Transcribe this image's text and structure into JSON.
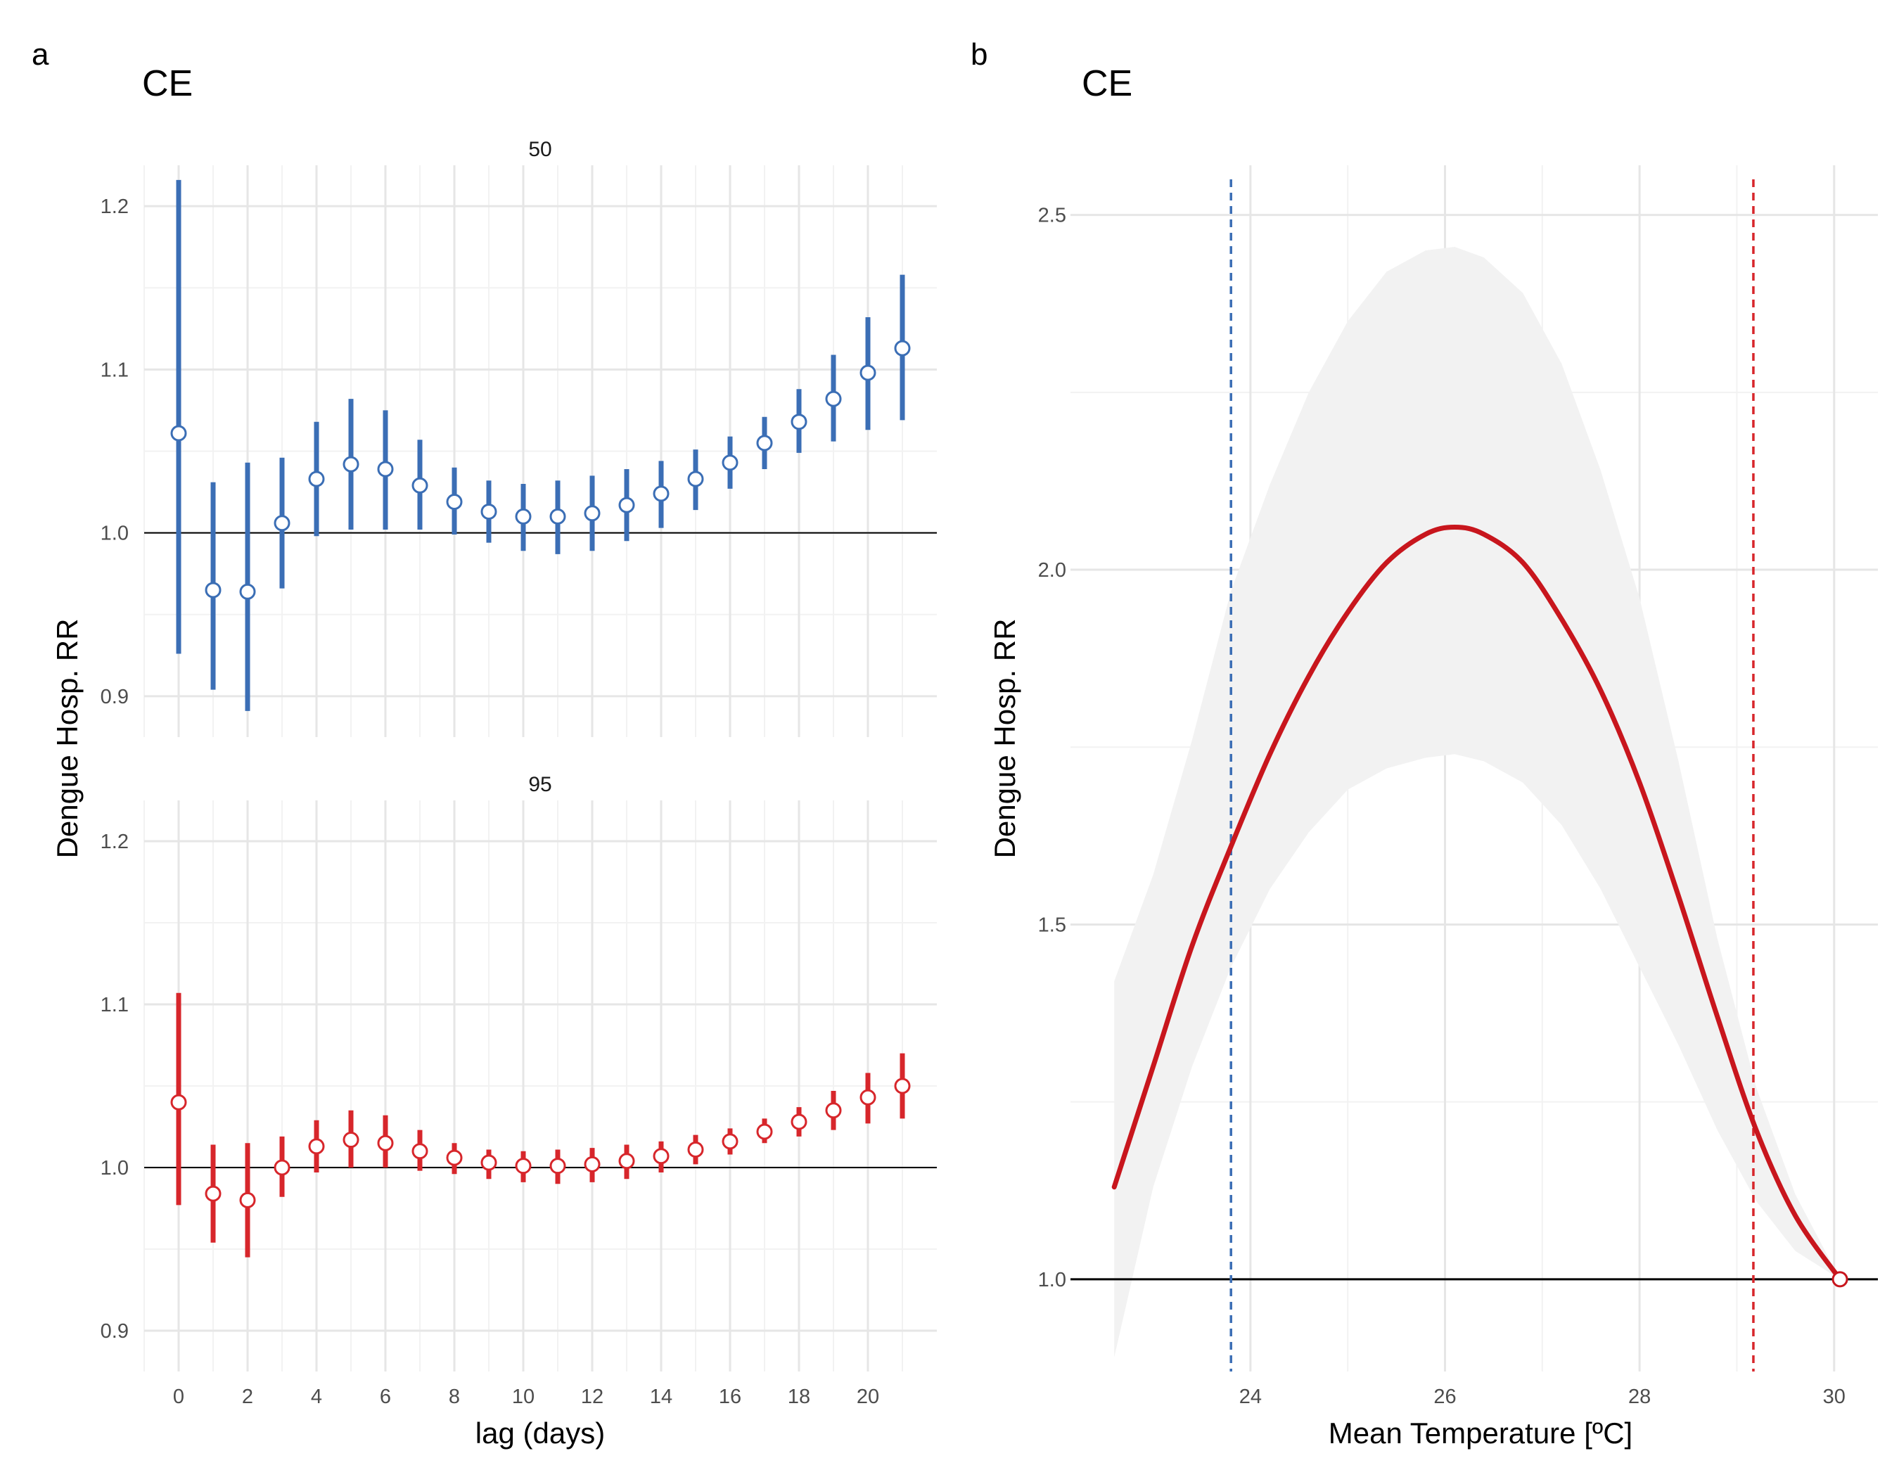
{
  "figure": {
    "panel_a_letter": "a",
    "panel_b_letter": "b"
  },
  "chart_data": [
    {
      "type": "scatter",
      "panel": "a",
      "title": "CE",
      "xlabel": "lag (days)",
      "ylabel": "Dengue Hosp. RR",
      "x_ticks": [
        0,
        2,
        4,
        6,
        8,
        10,
        12,
        14,
        16,
        18,
        20
      ],
      "y_ticks": [
        0.9,
        1.0,
        1.1,
        1.2
      ],
      "ylim": [
        0.875,
        1.225
      ],
      "xlim": [
        -1,
        22
      ],
      "reference_line": 1.0,
      "grid": true,
      "series": [
        {
          "name": "50",
          "color": "#3B6EB5",
          "lag": [
            0,
            1,
            2,
            3,
            4,
            5,
            6,
            7,
            8,
            9,
            10,
            11,
            12,
            13,
            14,
            15,
            16,
            17,
            18,
            19,
            20,
            21
          ],
          "rr": [
            1.061,
            0.965,
            0.964,
            1.006,
            1.033,
            1.042,
            1.039,
            1.029,
            1.019,
            1.013,
            1.01,
            1.01,
            1.012,
            1.017,
            1.024,
            1.033,
            1.043,
            1.055,
            1.068,
            1.082,
            1.098,
            1.113
          ],
          "lower": [
            0.926,
            0.904,
            0.891,
            0.966,
            0.998,
            1.002,
            1.002,
            1.002,
            0.999,
            0.994,
            0.989,
            0.987,
            0.989,
            0.995,
            1.003,
            1.014,
            1.027,
            1.039,
            1.049,
            1.056,
            1.063,
            1.069
          ],
          "upper": [
            1.216,
            1.031,
            1.043,
            1.046,
            1.068,
            1.082,
            1.075,
            1.057,
            1.04,
            1.032,
            1.03,
            1.032,
            1.035,
            1.039,
            1.044,
            1.051,
            1.059,
            1.071,
            1.088,
            1.109,
            1.132,
            1.158
          ]
        },
        {
          "name": "95",
          "color": "#D7262B",
          "lag": [
            0,
            1,
            2,
            3,
            4,
            5,
            6,
            7,
            8,
            9,
            10,
            11,
            12,
            13,
            14,
            15,
            16,
            17,
            18,
            19,
            20,
            21
          ],
          "rr": [
            1.04,
            0.984,
            0.98,
            1.0,
            1.013,
            1.017,
            1.015,
            1.01,
            1.006,
            1.003,
            1.001,
            1.001,
            1.002,
            1.004,
            1.007,
            1.011,
            1.016,
            1.022,
            1.028,
            1.035,
            1.043,
            1.05
          ],
          "lower": [
            0.977,
            0.954,
            0.945,
            0.982,
            0.997,
            1.0,
            1.0,
            0.998,
            0.996,
            0.993,
            0.991,
            0.99,
            0.991,
            0.993,
            0.997,
            1.002,
            1.008,
            1.015,
            1.019,
            1.023,
            1.027,
            1.03
          ],
          "upper": [
            1.107,
            1.014,
            1.015,
            1.019,
            1.029,
            1.035,
            1.032,
            1.023,
            1.015,
            1.011,
            1.01,
            1.011,
            1.012,
            1.014,
            1.016,
            1.02,
            1.024,
            1.03,
            1.037,
            1.047,
            1.058,
            1.07
          ]
        }
      ]
    },
    {
      "type": "line",
      "panel": "b",
      "title": "CE",
      "xlabel": "Mean Temperature [ºC]",
      "ylabel": "Dengue Hosp. RR",
      "x_ticks": [
        24,
        26,
        28,
        30
      ],
      "y_ticks": [
        1.0,
        1.5,
        2.0,
        2.5
      ],
      "xlim": [
        22.15,
        30.45
      ],
      "ylim": [
        0.87,
        2.57
      ],
      "reference_line": 1.0,
      "vlines": [
        {
          "x": 23.8,
          "color": "#3B6EB5"
        },
        {
          "x": 29.17,
          "color": "#D7262B"
        }
      ],
      "grid": true,
      "line_color": "#C8161D",
      "band_color": "#F2F2F2",
      "x": [
        22.6,
        23.0,
        23.4,
        23.8,
        24.2,
        24.6,
        25.0,
        25.4,
        25.8,
        26.1,
        26.4,
        26.8,
        27.2,
        27.6,
        28.0,
        28.4,
        28.8,
        29.2,
        29.6,
        30.06
      ],
      "rr": [
        1.13,
        1.3,
        1.47,
        1.61,
        1.74,
        1.85,
        1.94,
        2.01,
        2.05,
        2.06,
        2.05,
        2.01,
        1.93,
        1.83,
        1.7,
        1.54,
        1.37,
        1.21,
        1.09,
        1.0
      ],
      "lower": [
        0.89,
        1.13,
        1.3,
        1.44,
        1.55,
        1.63,
        1.69,
        1.72,
        1.735,
        1.74,
        1.73,
        1.7,
        1.64,
        1.55,
        1.44,
        1.33,
        1.21,
        1.11,
        1.04,
        1.0
      ],
      "upper": [
        1.42,
        1.57,
        1.76,
        1.97,
        2.12,
        2.25,
        2.35,
        2.42,
        2.45,
        2.455,
        2.44,
        2.39,
        2.29,
        2.14,
        1.96,
        1.73,
        1.48,
        1.27,
        1.12,
        1.0
      ],
      "reference_point": {
        "x": 30.06,
        "y": 1.0
      }
    }
  ]
}
